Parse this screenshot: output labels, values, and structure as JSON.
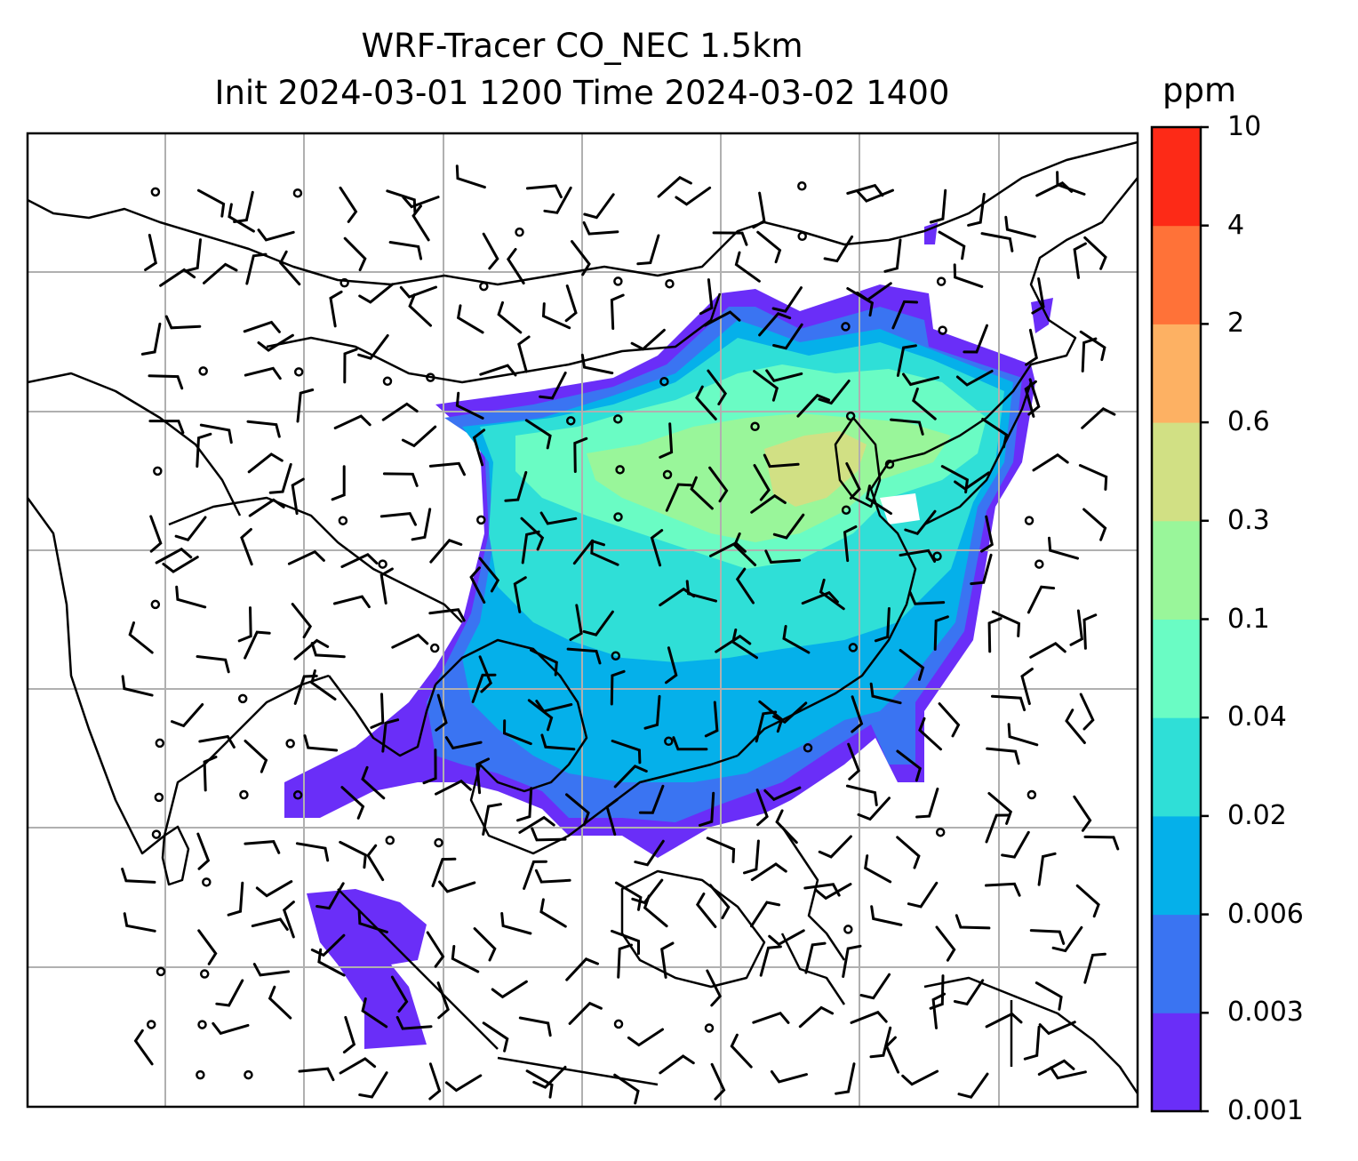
{
  "title": {
    "line1": "WRF-Tracer CO_NEC 1.5km",
    "line2": "Init 2024-03-01 1200 Time 2024-03-02 1400"
  },
  "colorbar": {
    "unit": "ppm",
    "levels": [
      "0.001",
      "0.003",
      "0.006",
      "0.02",
      "0.04",
      "0.1",
      "0.3",
      "0.6",
      "2",
      "4",
      "10"
    ],
    "colors": [
      "#6a2ef8",
      "#3a74f2",
      "#05b0ea",
      "#2fdfd7",
      "#6afcc4",
      "#99f69a",
      "#d1e084",
      "#fdb163",
      "#ff7238",
      "#fd2a17"
    ]
  },
  "map": {
    "gridlines": true,
    "gridline_color": "#b0b0b0",
    "coastline_color": "#000000"
  }
}
